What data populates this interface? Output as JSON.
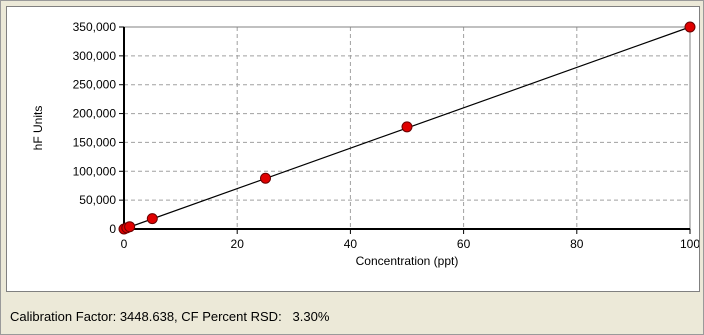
{
  "chart_data": {
    "type": "scatter",
    "xlabel": "Concentration (ppt)",
    "ylabel": "hF Units",
    "xlim": [
      0,
      100
    ],
    "ylim": [
      0,
      350000
    ],
    "x_ticks": [
      0,
      20,
      40,
      60,
      80,
      100
    ],
    "y_ticks": [
      0,
      50000,
      100000,
      150000,
      200000,
      250000,
      300000,
      350000
    ],
    "x_tick_labels": [
      "0",
      "20",
      "40",
      "60",
      "80",
      "100"
    ],
    "y_tick_labels": [
      "0",
      "50,000",
      "100,000",
      "150,000",
      "200,000",
      "250,000",
      "300,000",
      "350,000"
    ],
    "grid": true,
    "series": [
      {
        "x": [
          0,
          0.5,
          1,
          5,
          25,
          50,
          100
        ],
        "y": [
          0,
          2000,
          4000,
          18000,
          88000,
          177000,
          350000
        ],
        "marker_color": "#e00000",
        "fit_line": {
          "from": [
            0,
            0
          ],
          "to": [
            100,
            350000
          ],
          "color": "#000000"
        }
      }
    ]
  },
  "footer": {
    "cf_label": "Calibration Factor: 3448.638, CF Percent RSD:",
    "rsd_value": "3.30%"
  }
}
